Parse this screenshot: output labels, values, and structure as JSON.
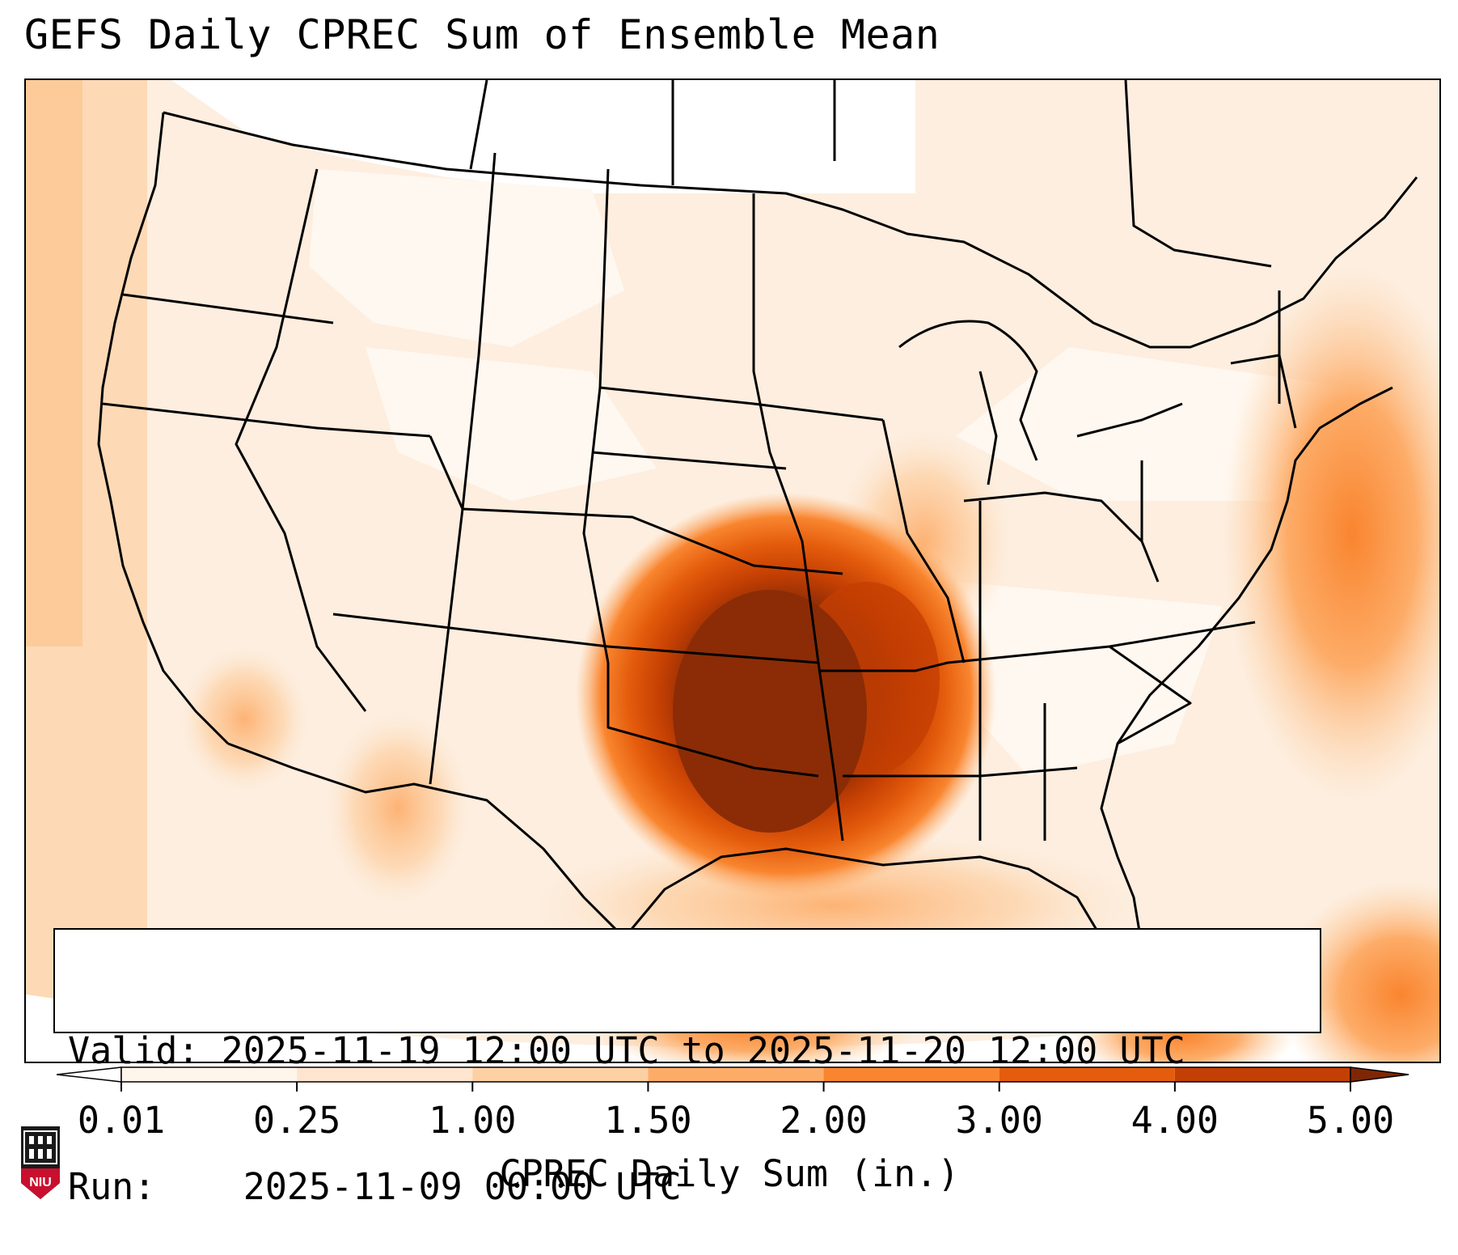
{
  "title": "GEFS Daily CPREC Sum of Ensemble Mean",
  "info": {
    "valid_label": "Valid:",
    "valid_value": "2025-11-19 12:00 UTC to 2025-11-20 12:00 UTC",
    "run_label": "Run:",
    "run_value": "2025-11-09 00:00 UTC"
  },
  "colorbar": {
    "label": "CPREC Daily Sum (in.)",
    "ticks": [
      "0.01",
      "0.25",
      "1.00",
      "1.50",
      "2.00",
      "3.00",
      "4.00",
      "5.00"
    ],
    "colors": [
      "#fef5eb",
      "#fde5cf",
      "#fdd0a3",
      "#fdac68",
      "#f9852f",
      "#e45c0c",
      "#c43f03",
      "#8b2c06"
    ],
    "under_color": "#ffffff",
    "over_color": "#7f2704"
  },
  "logo": {
    "text": "NIU",
    "color": "#c8102e"
  },
  "map": {
    "region": "Contiguous United States",
    "max_precip_area": "Oklahoma and north Texas",
    "background_color": "#fdeedf",
    "border_color": "#000000"
  }
}
